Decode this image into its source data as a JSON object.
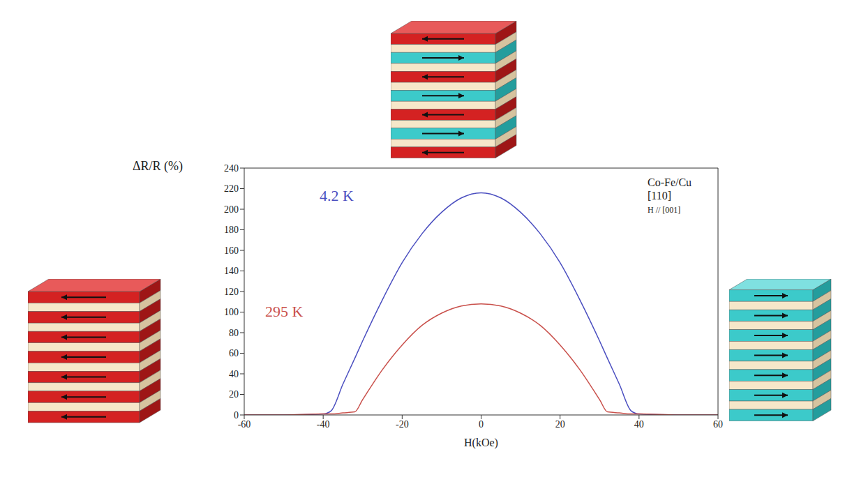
{
  "chart_data": {
    "type": "line",
    "x_label": "H(kOe)",
    "y_label": "ΔR/R (%)",
    "annotations": [
      "Co-Fe/Cu",
      "[110]",
      "H // [001]"
    ],
    "x": [
      -60,
      -50,
      -40,
      -38,
      -35,
      -32,
      -30,
      -25,
      -20,
      -15,
      -10,
      -5,
      0,
      5,
      10,
      15,
      20,
      25,
      30,
      32,
      35,
      38,
      40,
      50,
      60
    ],
    "series": [
      {
        "name": "4.2 K",
        "color": "#4b4fc0",
        "values": [
          0,
          0,
          1,
          4,
          30,
          55,
          72,
          112,
          148,
          176,
          197,
          211,
          216,
          211,
          197,
          176,
          148,
          112,
          72,
          55,
          30,
          4,
          1,
          0,
          0
        ]
      },
      {
        "name": "295 K",
        "color": "#c9504b",
        "values": [
          0,
          0,
          1,
          1,
          2,
          3,
          15,
          44,
          68,
          87,
          99,
          106,
          108,
          106,
          99,
          87,
          68,
          44,
          15,
          3,
          2,
          1,
          1,
          0,
          0
        ]
      }
    ],
    "xlim": [
      -60,
      60
    ],
    "xticks": [
      -60,
      -40,
      -20,
      0,
      20,
      40,
      60
    ],
    "ylim": [
      0,
      240
    ],
    "yticks": [
      0,
      20,
      40,
      60,
      80,
      100,
      120,
      140,
      160,
      180,
      200,
      220,
      240
    ],
    "grid": false,
    "marker": "none",
    "line_style": "solid"
  }
}
